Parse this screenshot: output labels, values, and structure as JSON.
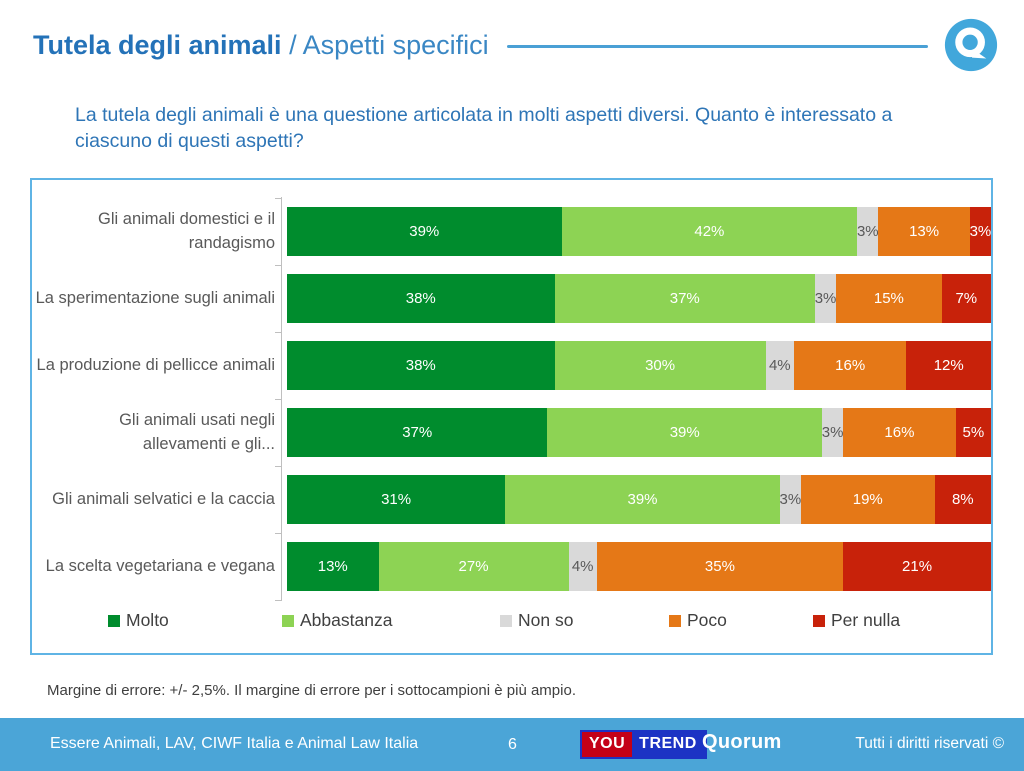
{
  "header": {
    "title_bold": "Tutela degli animali",
    "title_sep": " / ",
    "title_light": "Aspetti specifici"
  },
  "question": "La tutela degli animali è una questione articolata in molti aspetti diversi. Quanto è interessato a ciascuno di questi aspetti?",
  "chart_data": {
    "type": "bar",
    "orientation": "horizontal-stacked",
    "title": "",
    "xlabel": "",
    "ylabel": "",
    "xlim": [
      0,
      100
    ],
    "value_suffix": "%",
    "grid": false,
    "legend_position": "bottom",
    "categories": [
      "Gli animali domestici e il randagismo",
      "La sperimentazione sugli animali",
      "La produzione di pellicce animali",
      "Gli animali usati negli allevamenti e gli...",
      "Gli animali selvatici e la caccia",
      "La scelta vegetariana e vegana"
    ],
    "series": [
      {
        "name": "Molto",
        "color": "#008C2D",
        "label_color": "#ffffff",
        "values": [
          39,
          38,
          38,
          37,
          31,
          13
        ]
      },
      {
        "name": "Abbastanza",
        "color": "#8DD354",
        "label_color": "#ffffff",
        "values": [
          42,
          37,
          30,
          39,
          39,
          27
        ]
      },
      {
        "name": "Non so",
        "color": "#D9D9D9",
        "label_color": "#595959",
        "values": [
          3,
          3,
          4,
          3,
          3,
          4
        ]
      },
      {
        "name": "Poco",
        "color": "#E57817",
        "label_color": "#ffffff",
        "values": [
          13,
          15,
          16,
          16,
          19,
          35
        ]
      },
      {
        "name": "Per nulla",
        "color": "#C8220A",
        "label_color": "#ffffff",
        "values": [
          3,
          7,
          12,
          5,
          8,
          21
        ]
      }
    ]
  },
  "note": "Margine di errore: +/- 2,5%. Il margine di errore per i sottocampioni è più ampio.",
  "footer": {
    "source": "Essere Animali, LAV, CIWF Italia e Animal Law Italia",
    "page": "6",
    "youtrend_you": "YOU",
    "youtrend_trend": "TREND",
    "quorum": "Quorum",
    "rights": "Tutti i diritti riservati ©"
  },
  "colors": {
    "title_blue": "#2472B8",
    "question_blue": "#2E75B6",
    "chart_border": "#5FB4E5",
    "footer_bar": "#4BA5D7",
    "axis_gray": "#BFBFBF"
  }
}
